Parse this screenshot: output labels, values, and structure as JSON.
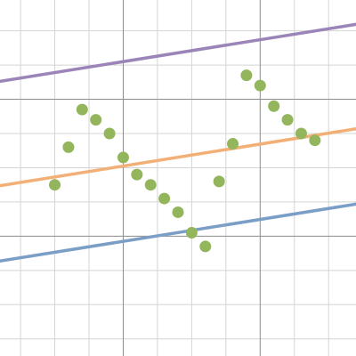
{
  "chart_data": {
    "type": "scatter",
    "grid": true,
    "axes_visible": false,
    "tick_labels_visible": false,
    "xlim": [
      -3.6,
      6.8
    ],
    "ylim": [
      -3.5,
      6.9
    ],
    "grid_minor_step": 1,
    "grid_major_step": 4,
    "series": [
      {
        "kind": "scatter",
        "color": "#93b55c",
        "points": [
          [
            -2,
            1.5
          ],
          [
            -1.6,
            2.6
          ],
          [
            -1.2,
            3.7
          ],
          [
            -0.8,
            3.4
          ],
          [
            -0.4,
            3.0
          ],
          [
            0,
            2.3
          ],
          [
            0.4,
            1.8
          ],
          [
            0.8,
            1.5
          ],
          [
            1.2,
            1.1
          ],
          [
            1.6,
            0.7
          ],
          [
            2.0,
            0.1
          ],
          [
            2.4,
            -0.3
          ],
          [
            2.8,
            1.6
          ],
          [
            3.2,
            2.7
          ],
          [
            3.6,
            4.7
          ],
          [
            4.0,
            4.4
          ],
          [
            4.4,
            3.8
          ],
          [
            4.8,
            3.4
          ],
          [
            5.2,
            3.0
          ],
          [
            5.6,
            2.8
          ]
        ]
      },
      {
        "kind": "line",
        "color": "#9b85b8",
        "slope": 0.16,
        "intercept": 5.1,
        "x_range": [
          -3.6,
          6.8
        ]
      },
      {
        "kind": "line",
        "color": "#f2b077",
        "slope": 0.16,
        "intercept": 2.05,
        "x_range": [
          -3.6,
          6.8
        ]
      },
      {
        "kind": "line",
        "color": "#7a9ec6",
        "slope": 0.16,
        "intercept": -0.15,
        "x_range": [
          -3.6,
          6.8
        ]
      }
    ]
  }
}
